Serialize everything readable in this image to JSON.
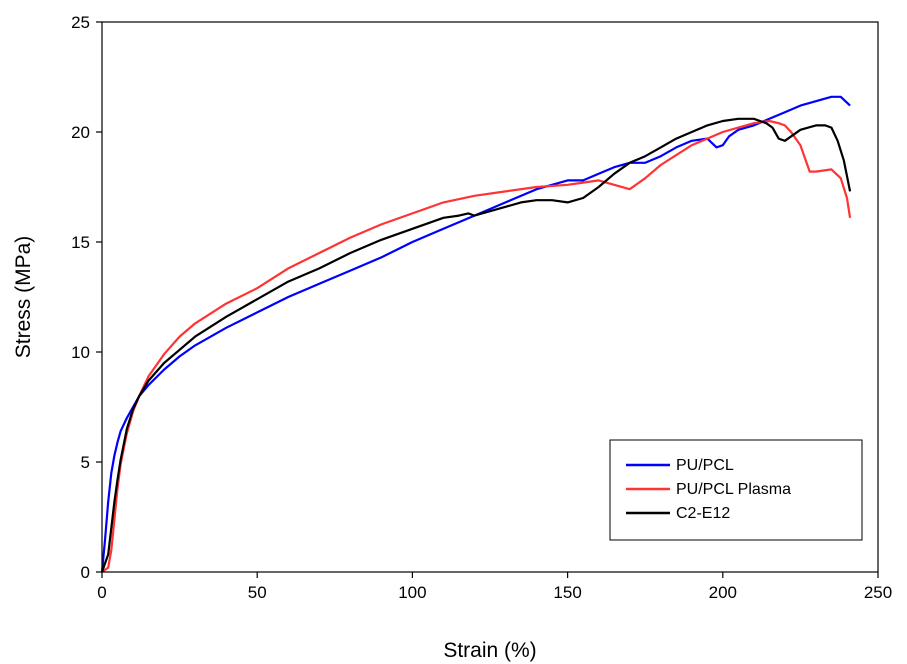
{
  "chart_data": {
    "type": "line",
    "title": "",
    "xlabel": "Strain (%)",
    "ylabel": "Stress (MPa)",
    "xlim": [
      0,
      250
    ],
    "ylim": [
      0,
      25
    ],
    "xticks": [
      0,
      50,
      100,
      150,
      200,
      250
    ],
    "yticks": [
      0,
      5,
      10,
      15,
      20,
      25
    ],
    "grid": false,
    "legend_position": "bottom-right",
    "series": [
      {
        "name": "PU/PCL",
        "color": "#0000ff",
        "x": [
          0,
          1,
          2,
          3,
          4,
          5,
          6,
          8,
          10,
          12,
          15,
          20,
          25,
          30,
          40,
          50,
          60,
          70,
          80,
          90,
          100,
          110,
          120,
          130,
          140,
          150,
          155,
          160,
          165,
          170,
          175,
          180,
          185,
          190,
          195,
          198,
          200,
          202,
          205,
          210,
          215,
          220,
          225,
          230,
          235,
          238,
          241
        ],
        "y": [
          0,
          1.5,
          3.2,
          4.5,
          5.3,
          5.9,
          6.4,
          7.0,
          7.5,
          8.0,
          8.5,
          9.2,
          9.8,
          10.3,
          11.1,
          11.8,
          12.5,
          13.1,
          13.7,
          14.3,
          15.0,
          15.6,
          16.2,
          16.8,
          17.4,
          17.8,
          17.8,
          18.1,
          18.4,
          18.6,
          18.6,
          18.9,
          19.3,
          19.6,
          19.7,
          19.3,
          19.4,
          19.8,
          20.1,
          20.3,
          20.6,
          20.9,
          21.2,
          21.4,
          21.6,
          21.6,
          21.2
        ]
      },
      {
        "name": "PU/PCL Plasma",
        "color": "#ff3333",
        "x": [
          0,
          2,
          3,
          4,
          5,
          6,
          8,
          10,
          12,
          15,
          20,
          25,
          30,
          40,
          50,
          60,
          70,
          80,
          90,
          100,
          110,
          120,
          130,
          140,
          150,
          155,
          160,
          165,
          170,
          175,
          180,
          190,
          200,
          210,
          215,
          218,
          220,
          222,
          225,
          228,
          230,
          235,
          238,
          240,
          241
        ],
        "y": [
          0,
          0.2,
          1.0,
          2.4,
          3.8,
          4.9,
          6.3,
          7.3,
          8.0,
          8.9,
          9.9,
          10.7,
          11.3,
          12.2,
          12.9,
          13.8,
          14.5,
          15.2,
          15.8,
          16.3,
          16.8,
          17.1,
          17.3,
          17.5,
          17.6,
          17.7,
          17.8,
          17.6,
          17.4,
          17.9,
          18.5,
          19.4,
          20.0,
          20.4,
          20.5,
          20.4,
          20.3,
          20.0,
          19.4,
          18.2,
          18.2,
          18.3,
          17.9,
          17.0,
          16.1
        ]
      },
      {
        "name": "C2-E12",
        "color": "#000000",
        "x": [
          0,
          2,
          3,
          4,
          5,
          6,
          8,
          10,
          12,
          15,
          20,
          25,
          30,
          40,
          50,
          60,
          70,
          80,
          90,
          100,
          110,
          115,
          118,
          120,
          125,
          130,
          135,
          140,
          145,
          150,
          155,
          160,
          165,
          170,
          175,
          180,
          185,
          190,
          195,
          200,
          205,
          210,
          212,
          214,
          216,
          218,
          220,
          225,
          230,
          233,
          235,
          237,
          239,
          241
        ],
        "y": [
          0,
          0.8,
          2.0,
          3.2,
          4.2,
          5.1,
          6.5,
          7.4,
          8.0,
          8.7,
          9.5,
          10.1,
          10.7,
          11.6,
          12.4,
          13.2,
          13.8,
          14.5,
          15.1,
          15.6,
          16.1,
          16.2,
          16.3,
          16.2,
          16.4,
          16.6,
          16.8,
          16.9,
          16.9,
          16.8,
          17.0,
          17.5,
          18.1,
          18.6,
          18.9,
          19.3,
          19.7,
          20.0,
          20.3,
          20.5,
          20.6,
          20.6,
          20.5,
          20.4,
          20.2,
          19.7,
          19.6,
          20.1,
          20.3,
          20.3,
          20.2,
          19.6,
          18.7,
          17.3
        ]
      }
    ]
  }
}
